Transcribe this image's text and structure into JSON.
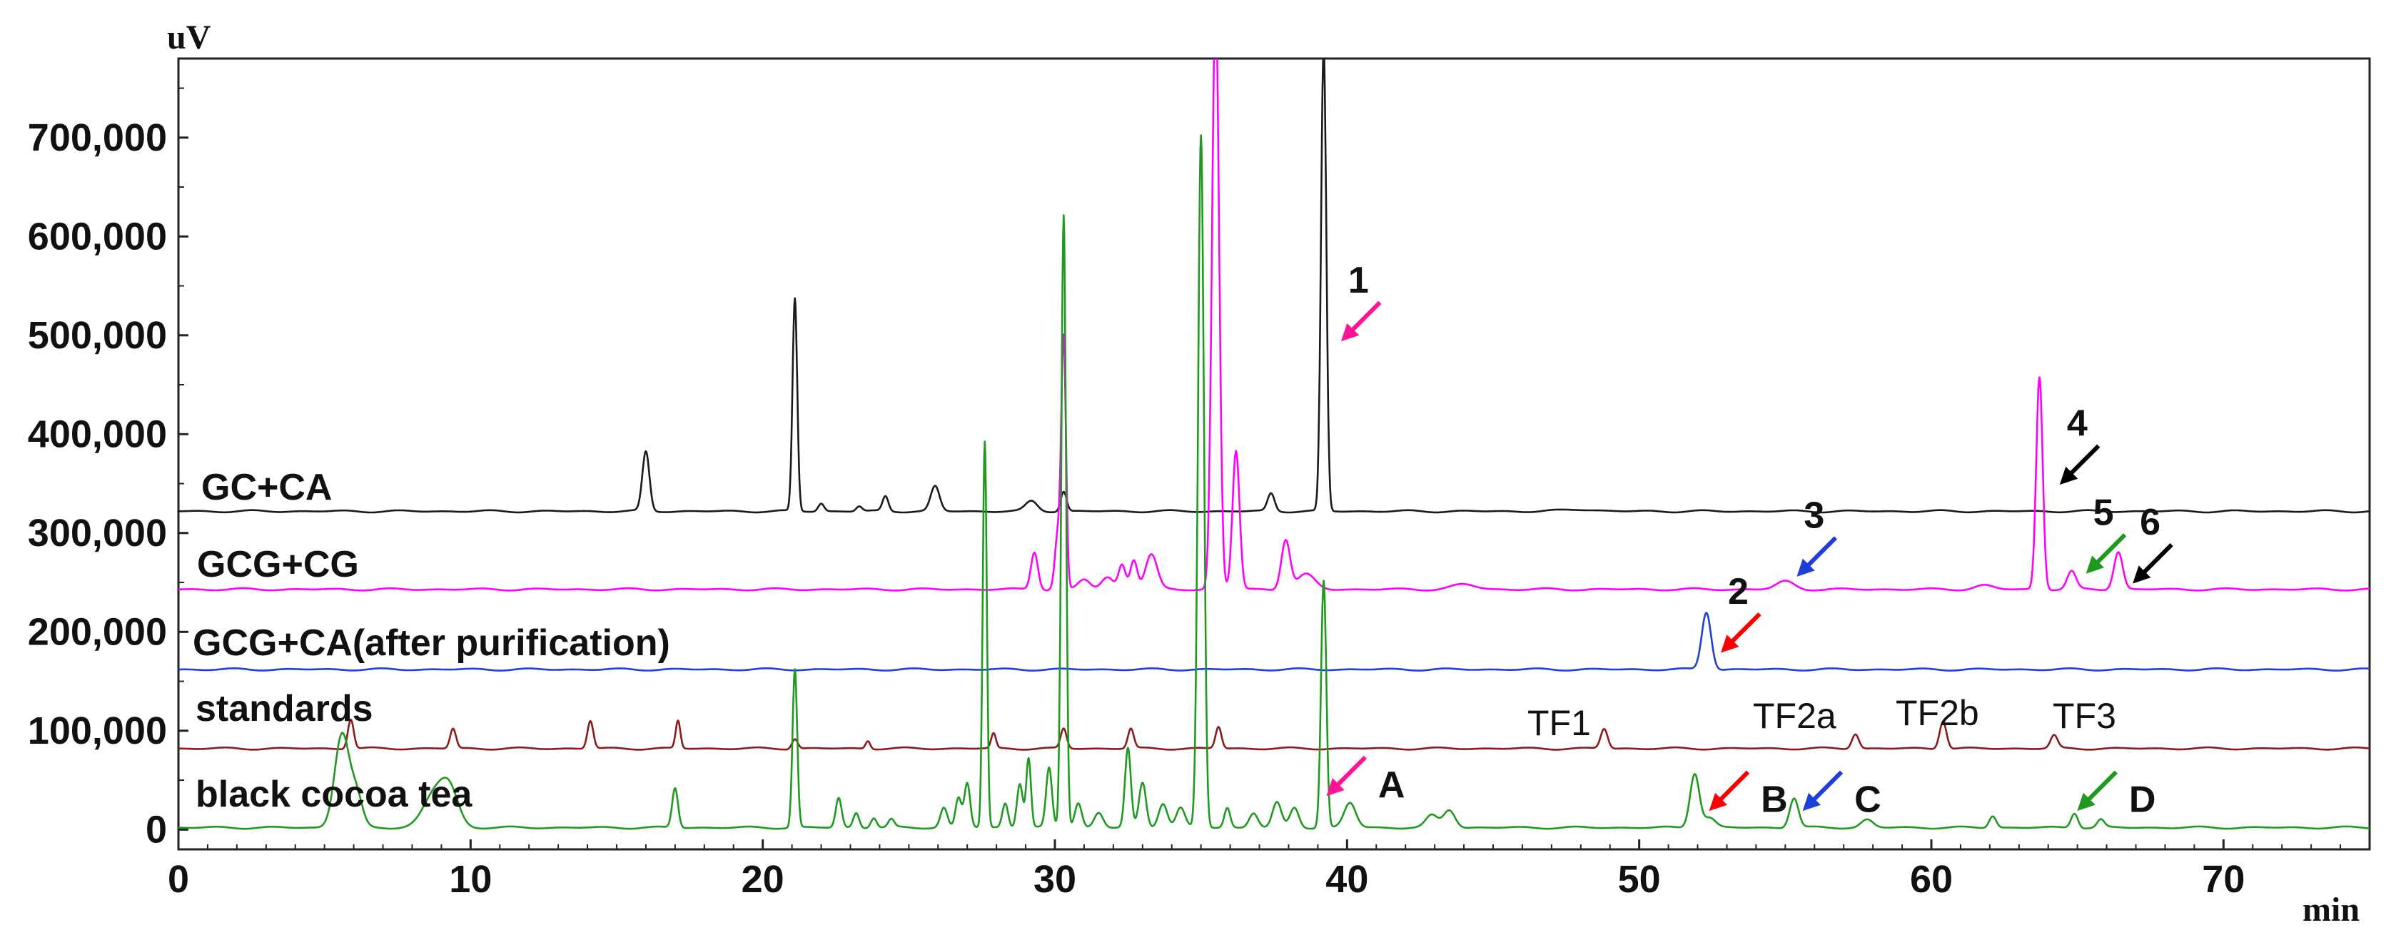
{
  "chart_data": {
    "type": "line",
    "title": "",
    "xlabel": "min",
    "ylabel": "uV",
    "xlim": [
      0,
      75
    ],
    "ylim": [
      -20000,
      780000
    ],
    "xticks": [
      0,
      10,
      20,
      30,
      40,
      50,
      60,
      70
    ],
    "xtick_labels": [
      "0",
      "10",
      "20",
      "30",
      "40",
      "50",
      "60",
      "70"
    ],
    "yticks": [
      0,
      100000,
      200000,
      300000,
      400000,
      500000,
      600000,
      700000
    ],
    "ytick_labels": [
      "0",
      "100,000",
      "200,000",
      "300,000",
      "400,000",
      "500,000",
      "600,000",
      "700,000"
    ],
    "grid": false,
    "series": [
      {
        "name": "GC+CA",
        "color": "#1a1a1a",
        "baseline": 322000,
        "peaks": [
          [
            16.0,
            60000,
            0.12
          ],
          [
            21.1,
            215000,
            0.08
          ],
          [
            22.0,
            8000,
            0.1
          ],
          [
            23.3,
            5000,
            0.1
          ],
          [
            24.2,
            15000,
            0.1
          ],
          [
            25.9,
            25000,
            0.15
          ],
          [
            29.2,
            10000,
            0.2
          ],
          [
            30.3,
            20000,
            0.1
          ],
          [
            37.4,
            18000,
            0.12
          ],
          [
            39.2,
            470000,
            0.09
          ],
          [
            48.0,
            2000,
            0.5
          ]
        ]
      },
      {
        "name": "GCG+CG",
        "color": "#ff00ff",
        "baseline": 243000,
        "peaks": [
          [
            29.3,
            38000,
            0.12
          ],
          [
            30.1,
            55000,
            0.1
          ],
          [
            30.3,
            250000,
            0.08
          ],
          [
            31.0,
            10000,
            0.2
          ],
          [
            31.8,
            12000,
            0.2
          ],
          [
            32.3,
            25000,
            0.12
          ],
          [
            32.7,
            30000,
            0.12
          ],
          [
            33.3,
            35000,
            0.2
          ],
          [
            35.5,
            600000,
            0.12
          ],
          [
            36.2,
            140000,
            0.12
          ],
          [
            37.9,
            50000,
            0.15
          ],
          [
            38.6,
            15000,
            0.3
          ],
          [
            44.0,
            5000,
            0.4
          ],
          [
            55.0,
            8000,
            0.3
          ],
          [
            61.8,
            4000,
            0.3
          ],
          [
            63.7,
            215000,
            0.11
          ],
          [
            64.8,
            18000,
            0.15
          ],
          [
            66.4,
            38000,
            0.15
          ]
        ]
      },
      {
        "name": "GCG+CA(after purification)",
        "color": "#1f3fd9",
        "baseline": 162000,
        "peaks": [
          [
            52.3,
            58000,
            0.16
          ]
        ]
      },
      {
        "name": "standards",
        "color": "#8b1a1a",
        "baseline": 82000,
        "peaks": [
          [
            5.9,
            30000,
            0.1
          ],
          [
            9.4,
            20000,
            0.1
          ],
          [
            14.1,
            28000,
            0.1
          ],
          [
            17.1,
            28000,
            0.08
          ],
          [
            21.1,
            10000,
            0.1
          ],
          [
            23.6,
            8000,
            0.08
          ],
          [
            27.9,
            15000,
            0.08
          ],
          [
            30.3,
            20000,
            0.1
          ],
          [
            32.6,
            20000,
            0.1
          ],
          [
            35.6,
            22000,
            0.1
          ],
          [
            48.8,
            20000,
            0.12
          ],
          [
            57.4,
            15000,
            0.12
          ],
          [
            60.4,
            28000,
            0.12
          ],
          [
            64.2,
            13000,
            0.12
          ]
        ]
      },
      {
        "name": "black cocoa tea",
        "color": "#1f9a1f",
        "baseline": 2000,
        "peaks": [
          [
            5.6,
            95000,
            0.25
          ],
          [
            6.1,
            30000,
            0.2
          ],
          [
            8.8,
            35000,
            0.4
          ],
          [
            9.3,
            30000,
            0.3
          ],
          [
            17.0,
            40000,
            0.1
          ],
          [
            21.1,
            160000,
            0.08
          ],
          [
            22.6,
            30000,
            0.1
          ],
          [
            23.2,
            15000,
            0.1
          ],
          [
            23.8,
            10000,
            0.1
          ],
          [
            24.4,
            8000,
            0.1
          ],
          [
            26.2,
            20000,
            0.12
          ],
          [
            26.7,
            30000,
            0.1
          ],
          [
            27.0,
            45000,
            0.1
          ],
          [
            27.6,
            390000,
            0.07
          ],
          [
            28.3,
            25000,
            0.1
          ],
          [
            28.8,
            45000,
            0.1
          ],
          [
            29.1,
            70000,
            0.08
          ],
          [
            29.8,
            60000,
            0.1
          ],
          [
            30.3,
            620000,
            0.08
          ],
          [
            30.8,
            25000,
            0.12
          ],
          [
            31.5,
            15000,
            0.15
          ],
          [
            32.5,
            80000,
            0.1
          ],
          [
            33.0,
            45000,
            0.12
          ],
          [
            33.7,
            25000,
            0.15
          ],
          [
            34.3,
            20000,
            0.15
          ],
          [
            35.0,
            700000,
            0.1
          ],
          [
            35.9,
            20000,
            0.1
          ],
          [
            36.8,
            15000,
            0.15
          ],
          [
            37.6,
            25000,
            0.15
          ],
          [
            38.2,
            20000,
            0.15
          ],
          [
            39.2,
            250000,
            0.09
          ],
          [
            40.1,
            25000,
            0.2
          ],
          [
            42.9,
            12000,
            0.2
          ],
          [
            43.5,
            18000,
            0.2
          ],
          [
            51.9,
            55000,
            0.16
          ],
          [
            52.4,
            10000,
            0.2
          ],
          [
            55.3,
            30000,
            0.15
          ],
          [
            57.8,
            8000,
            0.2
          ],
          [
            62.1,
            12000,
            0.12
          ],
          [
            64.9,
            15000,
            0.12
          ],
          [
            65.8,
            8000,
            0.12
          ]
        ]
      }
    ],
    "annotations": [
      {
        "label": "1",
        "color": "#ff1493",
        "x": 40.0,
        "y": 500000
      },
      {
        "label": "2",
        "color": "#ff0000",
        "x": 53.0,
        "y": 185000
      },
      {
        "label": "3",
        "color": "#1f3fd9",
        "x": 55.6,
        "y": 262000
      },
      {
        "label": "4",
        "color": "#000000",
        "x": 64.6,
        "y": 355000
      },
      {
        "label": "5",
        "color": "#1f9a1f",
        "x": 65.5,
        "y": 265000
      },
      {
        "label": "6",
        "color": "#000000",
        "x": 67.1,
        "y": 255000
      },
      {
        "label": "A",
        "color": "#ff1493",
        "x": 39.5,
        "y": 40000
      },
      {
        "label": "B",
        "color": "#ff0000",
        "x": 52.6,
        "y": 25000
      },
      {
        "label": "C",
        "color": "#1f3fd9",
        "x": 55.8,
        "y": 25000
      },
      {
        "label": "D",
        "color": "#1f9a1f",
        "x": 65.2,
        "y": 25000
      }
    ],
    "standard_labels": [
      "TF1",
      "TF2a",
      "TF2b",
      "TF3"
    ]
  }
}
